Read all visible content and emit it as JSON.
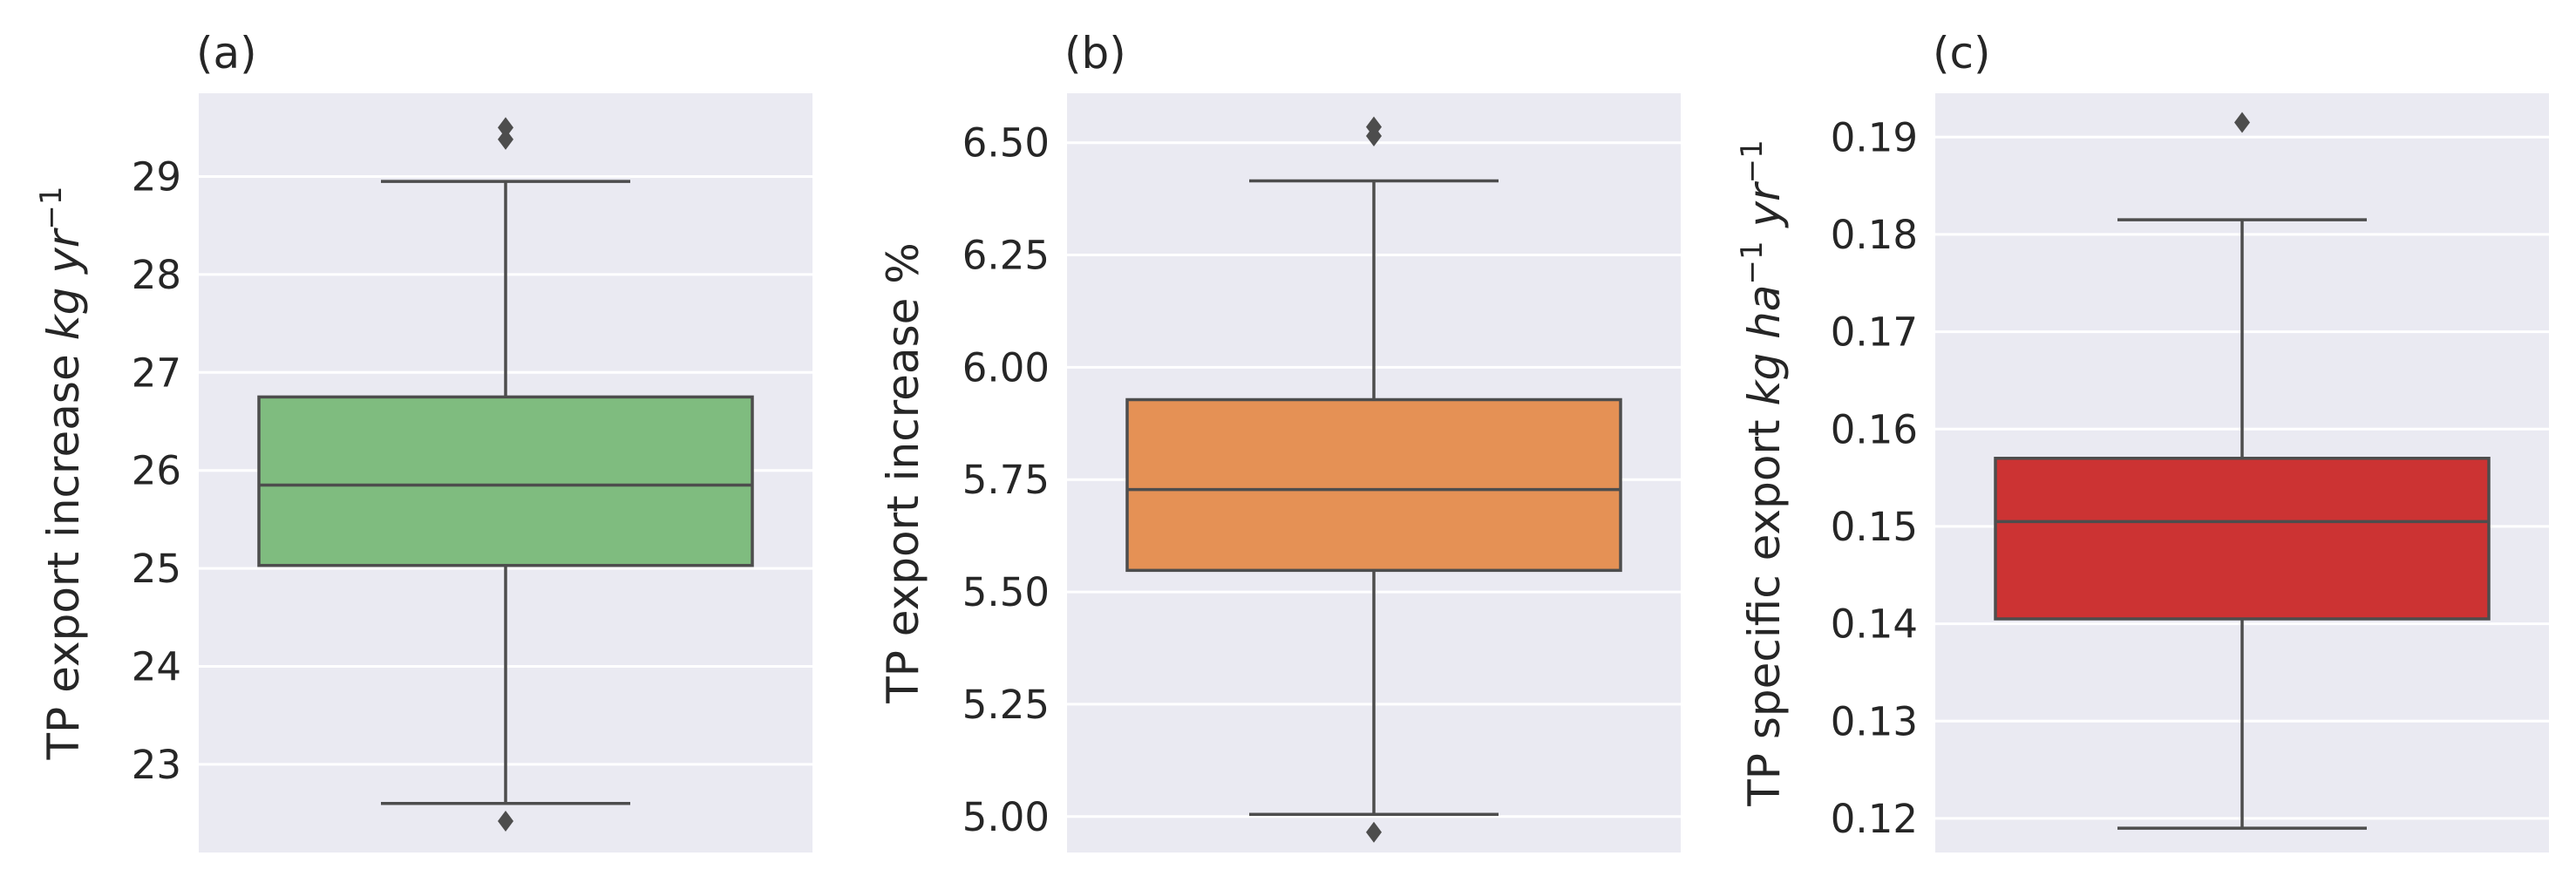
{
  "chart_data": [
    {
      "type": "box",
      "title": "(a)",
      "ylabel": {
        "prefix": "TP export increase ",
        "units": [
          [
            "kg",
            ""
          ],
          [
            " yr",
            "−1"
          ]
        ]
      },
      "ylim": [
        22.1,
        29.85
      ],
      "yticks": [
        23,
        24,
        25,
        26,
        27,
        28,
        29
      ],
      "tick_format": "int",
      "color": "#7fbc7f",
      "box": {
        "whisker_low": 22.6,
        "q1": 25.03,
        "median": 25.85,
        "q3": 26.75,
        "whisker_high": 28.95
      },
      "outliers": [
        22.42,
        29.38,
        29.5
      ],
      "grid": true
    },
    {
      "type": "box",
      "title": "(b)",
      "ylabel": {
        "prefix": "TP export increase %",
        "units": []
      },
      "ylim": [
        4.92,
        6.61
      ],
      "yticks": [
        5.0,
        5.25,
        5.5,
        5.75,
        6.0,
        6.25,
        6.5
      ],
      "tick_format": "2dp",
      "color": "#e59155",
      "box": {
        "whisker_low": 5.005,
        "q1": 5.548,
        "median": 5.728,
        "q3": 5.928,
        "whisker_high": 6.415
      },
      "outliers": [
        4.965,
        6.515,
        6.535
      ],
      "grid": true
    },
    {
      "type": "box",
      "title": "(c)",
      "ylabel": {
        "prefix": "TP specific export ",
        "units": [
          [
            "kg",
            ""
          ],
          [
            " ha",
            "−1"
          ],
          [
            " yr",
            "−1"
          ]
        ]
      },
      "ylim": [
        0.1165,
        0.1945
      ],
      "yticks": [
        0.12,
        0.13,
        0.14,
        0.15,
        0.16,
        0.17,
        0.18,
        0.19
      ],
      "tick_format": "2dp",
      "color": "#cc3333",
      "box": {
        "whisker_low": 0.119,
        "q1": 0.1405,
        "median": 0.1505,
        "q3": 0.157,
        "whisker_high": 0.1815
      },
      "outliers": [
        0.1915
      ],
      "grid": true
    }
  ],
  "style": {
    "background": "#eaeaf2",
    "grid_color": "#ffffff",
    "line_color": "#4d4d4d",
    "outlier_color": "#4d4d4d"
  }
}
